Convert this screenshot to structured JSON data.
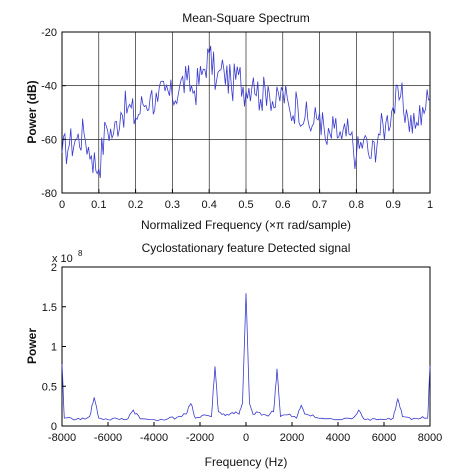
{
  "chart_data": [
    {
      "type": "line",
      "title": "Mean-Square Spectrum",
      "xlabel": "Normalized Frequency  (×π rad/sample)",
      "ylabel": "Power (dB)",
      "xlim": [
        0,
        1
      ],
      "ylim": [
        -80,
        -20
      ],
      "xticks": [
        "0",
        "0.1",
        "0.2",
        "0.3",
        "0.4",
        "0.5",
        "0.6",
        "0.7",
        "0.8",
        "0.9",
        "1"
      ],
      "yticks": [
        "-20",
        "-40",
        "-60",
        "-80"
      ],
      "grid": true,
      "line_color": "#3a3ad0",
      "series": [
        {
          "x": [
            0,
            0.02,
            0.04,
            0.06,
            0.08,
            0.1,
            0.12,
            0.14,
            0.16,
            0.18,
            0.2,
            0.22,
            0.24,
            0.26,
            0.28,
            0.3,
            0.32,
            0.34,
            0.36,
            0.38,
            0.4,
            0.42,
            0.44,
            0.46,
            0.48,
            0.5,
            0.52,
            0.54,
            0.56,
            0.58,
            0.6,
            0.62,
            0.64,
            0.66,
            0.68,
            0.7,
            0.72,
            0.74,
            0.76,
            0.78,
            0.8,
            0.82,
            0.84,
            0.86,
            0.88,
            0.9,
            0.92,
            0.94,
            0.96,
            0.98,
            1
          ],
          "values": [
            -65,
            -62,
            -60,
            -58,
            -66,
            -71,
            -55,
            -58,
            -50,
            -48,
            -52,
            -47,
            -44,
            -46,
            -42,
            -45,
            -40,
            -38,
            -42,
            -36,
            -28,
            -38,
            -34,
            -40,
            -36,
            -42,
            -37,
            -45,
            -40,
            -48,
            -42,
            -50,
            -46,
            -52,
            -55,
            -50,
            -62,
            -56,
            -60,
            -58,
            -66,
            -60,
            -67,
            -58,
            -54,
            -48,
            -44,
            -52,
            -56,
            -48,
            -45
          ]
        }
      ]
    },
    {
      "type": "line",
      "title": "Cyclostationary feature Detected signal",
      "xlabel": "Frequency (Hz)",
      "ylabel": "Power",
      "scale_label": "x 10",
      "scale_exponent": "8",
      "xlim": [
        -8000,
        8000
      ],
      "ylim": [
        0,
        2
      ],
      "xticks": [
        "-8000",
        "-6000",
        "-4000",
        "-2000",
        "0",
        "2000",
        "4000",
        "6000",
        "8000"
      ],
      "yticks": [
        "0",
        "0.5",
        "1",
        "1.5",
        "2"
      ],
      "grid": false,
      "line_color": "#3a3ad0",
      "series": [
        {
          "x": [
            -8000,
            -7900,
            -7600,
            -7200,
            -6800,
            -6600,
            -6400,
            -6000,
            -5600,
            -5200,
            -4900,
            -4600,
            -4000,
            -3400,
            -3000,
            -2600,
            -2400,
            -2200,
            -1800,
            -1500,
            -1350,
            -1200,
            -900,
            -600,
            -300,
            -150,
            0,
            150,
            300,
            600,
            900,
            1200,
            1350,
            1500,
            1800,
            2200,
            2400,
            2600,
            3000,
            3400,
            4000,
            4600,
            4900,
            5200,
            5600,
            6000,
            6400,
            6600,
            6800,
            7200,
            7600,
            7900,
            8000
          ],
          "values": [
            0.78,
            0.1,
            0.1,
            0.08,
            0.12,
            0.36,
            0.1,
            0.08,
            0.09,
            0.08,
            0.2,
            0.09,
            0.08,
            0.09,
            0.11,
            0.15,
            0.28,
            0.1,
            0.14,
            0.12,
            0.75,
            0.18,
            0.13,
            0.17,
            0.15,
            0.28,
            1.67,
            0.28,
            0.15,
            0.17,
            0.13,
            0.18,
            0.72,
            0.12,
            0.14,
            0.1,
            0.26,
            0.15,
            0.11,
            0.09,
            0.08,
            0.09,
            0.2,
            0.08,
            0.09,
            0.08,
            0.1,
            0.34,
            0.12,
            0.08,
            0.1,
            0.1,
            0.76
          ]
        }
      ]
    }
  ]
}
